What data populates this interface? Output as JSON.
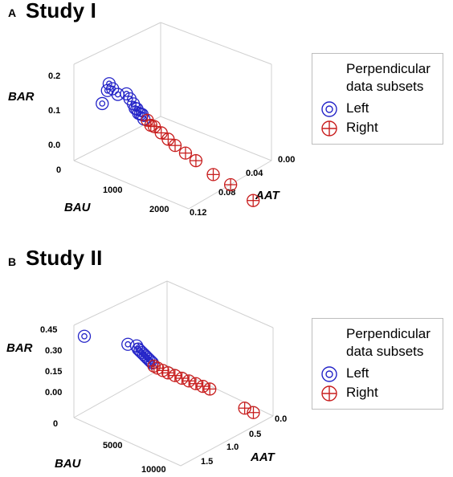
{
  "panels": [
    {
      "letter": "A",
      "title": "Study I"
    },
    {
      "letter": "B",
      "title": "Study II"
    }
  ],
  "legend": {
    "title_line1": "Perpendicular",
    "title_line2": "data subsets",
    "left_label": "Left",
    "right_label": "Right",
    "left_color": "#2424c8",
    "right_color": "#c81e1e"
  },
  "chart_data": [
    {
      "type": "scatter",
      "title": "Study I",
      "axes": {
        "BAR": {
          "label": "BAR",
          "ticks": [
            "0.2",
            "0.1",
            "0.0"
          ],
          "range": [
            0.0,
            0.2
          ]
        },
        "BAU": {
          "label": "BAU",
          "ticks": [
            "0",
            "1000",
            "2000"
          ],
          "range": [
            0,
            2000
          ]
        },
        "AAT": {
          "label": "AAT",
          "ticks": [
            "0.00",
            "0.04",
            "0.08",
            "0.12"
          ],
          "range": [
            0.0,
            0.12
          ]
        }
      },
      "series": [
        {
          "name": "Left",
          "color": "#2424c8",
          "marker": "circle-dot",
          "points": [
            [
              0.12,
              0.19
            ],
            [
              0.11,
              0.17
            ],
            [
              0.14,
              0.18
            ],
            [
              0.17,
              0.17
            ],
            [
              0.08,
              0.13
            ],
            [
              0.22,
              0.18
            ],
            [
              0.24,
              0.17
            ],
            [
              0.26,
              0.16
            ],
            [
              0.27,
              0.15
            ],
            [
              0.28,
              0.15
            ],
            [
              0.29,
              0.14
            ],
            [
              0.3,
              0.14
            ],
            [
              0.31,
              0.14
            ],
            [
              0.32,
              0.13
            ]
          ]
        },
        {
          "name": "Right",
          "color": "#c81e1e",
          "marker": "circle-cross",
          "points": [
            [
              0.34,
              0.13
            ],
            [
              0.36,
              0.12
            ],
            [
              0.38,
              0.12
            ],
            [
              0.42,
              0.11
            ],
            [
              0.46,
              0.1
            ],
            [
              0.5,
              0.09
            ],
            [
              0.56,
              0.08
            ],
            [
              0.62,
              0.07
            ],
            [
              0.72,
              0.05
            ],
            [
              0.82,
              0.04
            ],
            [
              0.95,
              0.02
            ]
          ]
        }
      ]
    },
    {
      "type": "scatter",
      "title": "Study II",
      "axes": {
        "BAR": {
          "label": "BAR",
          "ticks": [
            "0.45",
            "0.30",
            "0.15",
            "0.00"
          ],
          "range": [
            0.0,
            0.45
          ]
        },
        "BAU": {
          "label": "BAU",
          "ticks": [
            "0",
            "5000",
            "10000"
          ],
          "range": [
            0,
            10000
          ]
        },
        "AAT": {
          "label": "AAT",
          "ticks": [
            "0.0",
            "0.5",
            "1.0",
            "1.5"
          ],
          "range": [
            0.0,
            1.5
          ]
        }
      },
      "series": [
        {
          "name": "Left",
          "color": "#2424c8",
          "marker": "circle-dot",
          "points": [
            [
              0.0,
              0.4
            ],
            [
              0.25,
              0.4
            ],
            [
              0.3,
              0.4
            ],
            [
              0.31,
              0.38
            ],
            [
              0.32,
              0.37
            ],
            [
              0.33,
              0.36
            ],
            [
              0.34,
              0.35
            ],
            [
              0.35,
              0.34
            ],
            [
              0.36,
              0.33
            ],
            [
              0.37,
              0.32
            ],
            [
              0.38,
              0.31
            ],
            [
              0.39,
              0.3
            ]
          ]
        },
        {
          "name": "Right",
          "color": "#c81e1e",
          "marker": "circle-cross",
          "points": [
            [
              0.4,
              0.28
            ],
            [
              0.42,
              0.27
            ],
            [
              0.45,
              0.26
            ],
            [
              0.48,
              0.25
            ],
            [
              0.52,
              0.24
            ],
            [
              0.56,
              0.23
            ],
            [
              0.6,
              0.22
            ],
            [
              0.64,
              0.21
            ],
            [
              0.68,
              0.2
            ],
            [
              0.72,
              0.19
            ],
            [
              0.92,
              0.1
            ],
            [
              0.97,
              0.08
            ]
          ]
        }
      ]
    }
  ]
}
